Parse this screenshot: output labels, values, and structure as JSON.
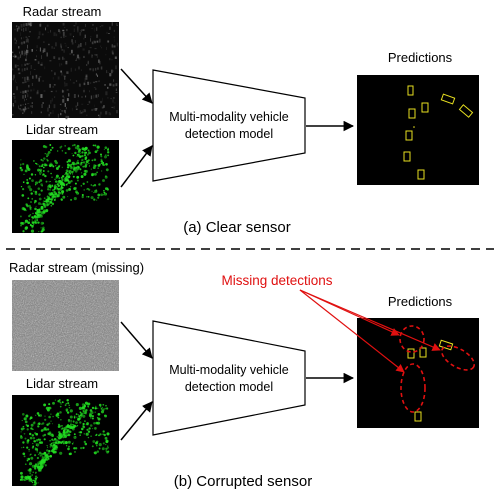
{
  "panel_a": {
    "radar_label": "Radar stream",
    "lidar_label": "Lidar stream",
    "model_label_line1": "Multi-modality vehicle",
    "model_label_line2": "detection model",
    "predictions_label": "Predictions",
    "caption": "(a) Clear sensor"
  },
  "panel_b": {
    "radar_label": "Radar stream (missing)",
    "lidar_label": "Lidar stream",
    "model_label_line1": "Multi-modality vehicle",
    "model_label_line2": "detection model",
    "predictions_label": "Predictions",
    "missing_label": "Missing detections",
    "caption": "(b) Corrupted sensor"
  },
  "colors": {
    "lidar_points": "#22dd22",
    "box_outline": "#e8e020",
    "missing": "#e01010",
    "background_dark": "#000000"
  }
}
